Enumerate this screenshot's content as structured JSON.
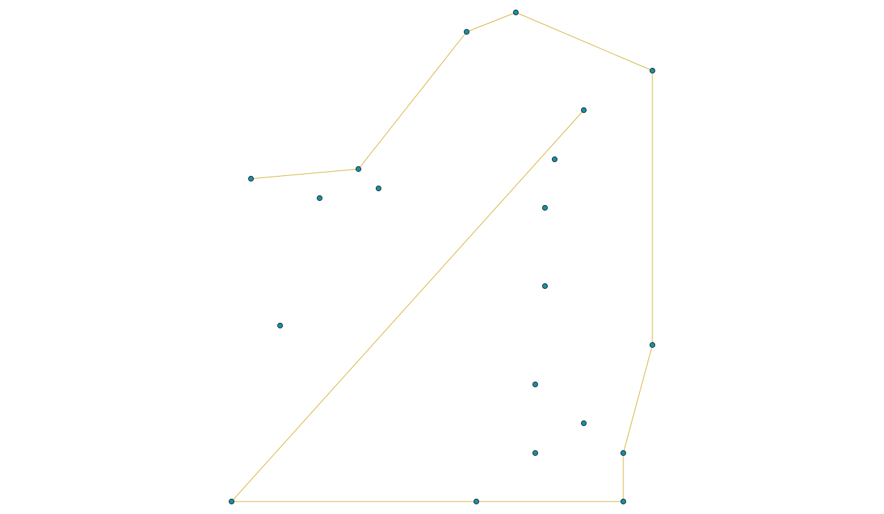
{
  "colors": {
    "background": "#ffffff",
    "edge": "#d4b23a",
    "node_fill": "#1591a3",
    "node_stroke": "#1c2a33"
  },
  "diagram": {
    "type": "point-and-path graph",
    "nodes": [
      {
        "id": "n1"
      },
      {
        "id": "n2"
      },
      {
        "id": "n3"
      },
      {
        "id": "n4"
      },
      {
        "id": "n5"
      },
      {
        "id": "n6"
      },
      {
        "id": "n7"
      },
      {
        "id": "n8"
      },
      {
        "id": "n9"
      },
      {
        "id": "n10"
      },
      {
        "id": "n11"
      },
      {
        "id": "n12"
      },
      {
        "id": "n13"
      },
      {
        "id": "n14"
      },
      {
        "id": "n15"
      },
      {
        "id": "n16"
      },
      {
        "id": "n17"
      },
      {
        "id": "n18"
      },
      {
        "id": "n19"
      },
      {
        "id": "n20"
      }
    ],
    "edges": [
      [
        "n1",
        "n2"
      ],
      [
        "n2",
        "n3"
      ],
      [
        "n3",
        "n4"
      ],
      [
        "n4",
        "n5"
      ],
      [
        "n5",
        "n6"
      ],
      [
        "n6",
        "n7"
      ],
      [
        "n7",
        "n8"
      ],
      [
        "n8",
        "n9"
      ],
      [
        "n9",
        "n10"
      ],
      [
        "n10",
        "n11"
      ]
    ]
  }
}
